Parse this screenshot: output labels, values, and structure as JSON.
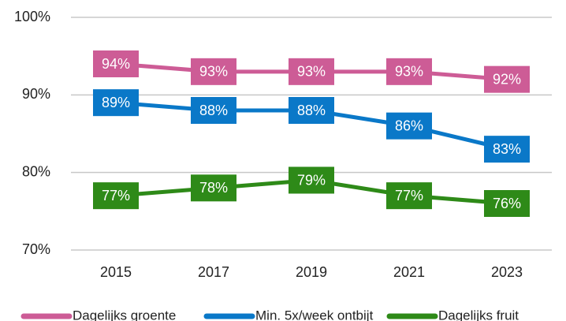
{
  "chart_data": {
    "type": "line",
    "x": [
      "2015",
      "2017",
      "2019",
      "2021",
      "2023"
    ],
    "series": [
      {
        "name": "Dagelijks groente",
        "color": "#cd5c96",
        "values": [
          94,
          93,
          93,
          93,
          92
        ],
        "value_labels": [
          "94%",
          "93%",
          "93%",
          "93%",
          "92%"
        ]
      },
      {
        "name": "Min. 5x/week ontbijt",
        "color": "#0a78c8",
        "values": [
          89,
          88,
          88,
          86,
          83
        ],
        "value_labels": [
          "89%",
          "88%",
          "88%",
          "86%",
          "83%"
        ]
      },
      {
        "name": "Dagelijks fruit",
        "color": "#2e8a18",
        "values": [
          77,
          78,
          79,
          77,
          76
        ],
        "value_labels": [
          "77%",
          "78%",
          "79%",
          "77%",
          "76%"
        ]
      }
    ],
    "ylim": [
      70,
      100
    ],
    "yticks": [
      {
        "value": 70,
        "label": "70%"
      },
      {
        "value": 80,
        "label": "80%"
      },
      {
        "value": 90,
        "label": "90%"
      },
      {
        "value": 100,
        "label": "100%"
      }
    ],
    "grid": true,
    "legend": "bottom"
  }
}
